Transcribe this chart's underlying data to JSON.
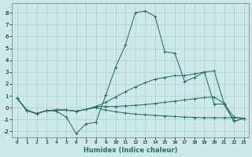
{
  "xlabel": "Humidex (Indice chaleur)",
  "x_values": [
    0,
    1,
    2,
    3,
    4,
    5,
    6,
    7,
    8,
    9,
    10,
    11,
    12,
    13,
    14,
    15,
    16,
    17,
    18,
    19,
    20,
    21,
    22,
    23
  ],
  "lines": [
    [
      0.8,
      -0.2,
      -0.5,
      -0.25,
      -0.3,
      -0.8,
      -2.2,
      -1.35,
      -1.25,
      1.05,
      3.4,
      5.3,
      8.0,
      8.15,
      7.7,
      4.7,
      4.6,
      2.2,
      2.55,
      3.0,
      0.3,
      0.3,
      -1.15,
      -0.9
    ],
    [
      0.8,
      -0.25,
      -0.5,
      -0.25,
      -0.2,
      -0.2,
      -0.3,
      -0.15,
      0.1,
      0.45,
      0.9,
      1.35,
      1.75,
      2.1,
      2.4,
      2.55,
      2.7,
      2.7,
      2.85,
      3.0,
      3.1,
      0.35,
      -1.15,
      -0.9
    ],
    [
      0.8,
      -0.25,
      -0.5,
      -0.25,
      -0.2,
      -0.2,
      -0.3,
      -0.15,
      0.1,
      0.1,
      0.1,
      0.15,
      0.2,
      0.25,
      0.35,
      0.45,
      0.55,
      0.65,
      0.75,
      0.85,
      0.9,
      0.35,
      -0.8,
      -0.9
    ],
    [
      0.8,
      -0.25,
      -0.5,
      -0.25,
      -0.2,
      -0.2,
      -0.3,
      -0.15,
      0.0,
      -0.2,
      -0.35,
      -0.45,
      -0.55,
      -0.6,
      -0.65,
      -0.7,
      -0.75,
      -0.8,
      -0.82,
      -0.85,
      -0.85,
      -0.85,
      -0.85,
      -0.9
    ]
  ],
  "line_color": "#2a6e66",
  "bg_color": "#cce8e8",
  "grid_color": "#aacece",
  "ylim": [
    -2.5,
    8.8
  ],
  "xlim": [
    -0.5,
    23.5
  ],
  "yticks": [
    -2,
    -1,
    0,
    1,
    2,
    3,
    4,
    5,
    6,
    7,
    8
  ],
  "xticks": [
    0,
    1,
    2,
    3,
    4,
    5,
    6,
    7,
    8,
    9,
    10,
    11,
    12,
    13,
    14,
    15,
    16,
    17,
    18,
    19,
    20,
    21,
    22,
    23
  ]
}
